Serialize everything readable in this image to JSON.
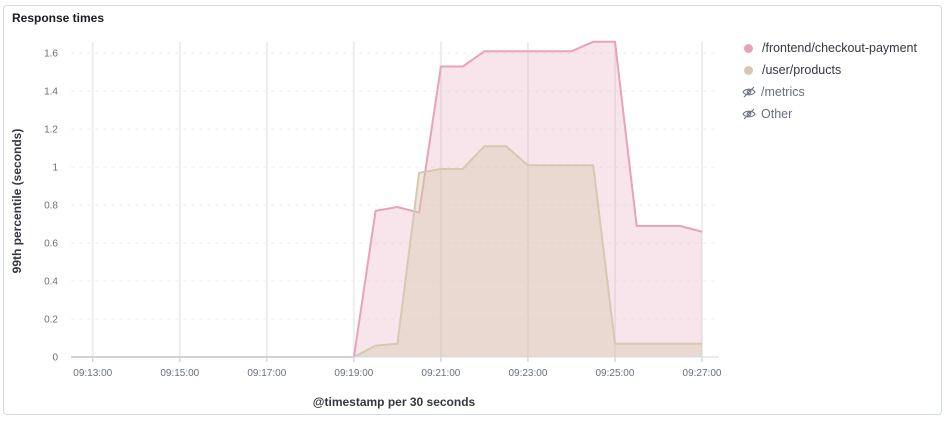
{
  "panel": {
    "title": "Response times"
  },
  "chart_data": {
    "type": "area",
    "xlabel": "@timestamp per 30 seconds",
    "ylabel": "99th percentile (seconds)",
    "ylim": [
      0,
      1.68
    ],
    "yticks": [
      0,
      0.2,
      0.4,
      0.6,
      0.8,
      1,
      1.2,
      1.4,
      1.6
    ],
    "ytick_labels": [
      "0",
      "0.2",
      "0.4",
      "0.6",
      "0.8",
      "1",
      "1.2",
      "1.4",
      "1.6"
    ],
    "x_range": [
      "09:12:30",
      "09:27:00"
    ],
    "xticks": [
      "09:13:00",
      "09:15:00",
      "09:17:00",
      "09:19:00",
      "09:21:00",
      "09:23:00",
      "09:25:00",
      "09:27:00"
    ],
    "grid": true,
    "legend_position": "right",
    "series": [
      {
        "name": "/frontend/checkout-payment",
        "color": "#e7a3b8",
        "points": [
          [
            "09:12:30",
            0
          ],
          [
            "09:19:00",
            0
          ],
          [
            "09:19:30",
            0.77
          ],
          [
            "09:20:00",
            0.79
          ],
          [
            "09:20:30",
            0.76
          ],
          [
            "09:21:00",
            1.53
          ],
          [
            "09:21:30",
            1.53
          ],
          [
            "09:22:00",
            1.61
          ],
          [
            "09:22:30",
            1.61
          ],
          [
            "09:23:00",
            1.61
          ],
          [
            "09:23:30",
            1.61
          ],
          [
            "09:24:00",
            1.61
          ],
          [
            "09:24:30",
            1.66
          ],
          [
            "09:25:00",
            1.66
          ],
          [
            "09:25:30",
            0.69
          ],
          [
            "09:26:00",
            0.69
          ],
          [
            "09:26:30",
            0.69
          ],
          [
            "09:27:00",
            0.66
          ]
        ]
      },
      {
        "name": "/user/products",
        "color": "#d6c9b2",
        "points": [
          [
            "09:12:30",
            0
          ],
          [
            "09:19:00",
            0
          ],
          [
            "09:19:30",
            0.06
          ],
          [
            "09:20:00",
            0.07
          ],
          [
            "09:20:30",
            0.97
          ],
          [
            "09:21:00",
            0.99
          ],
          [
            "09:21:30",
            0.99
          ],
          [
            "09:22:00",
            1.11
          ],
          [
            "09:22:30",
            1.11
          ],
          [
            "09:23:00",
            1.01
          ],
          [
            "09:23:30",
            1.01
          ],
          [
            "09:24:00",
            1.01
          ],
          [
            "09:24:30",
            1.01
          ],
          [
            "09:25:00",
            0.07
          ],
          [
            "09:25:30",
            0.07
          ],
          [
            "09:26:00",
            0.07
          ],
          [
            "09:26:30",
            0.07
          ],
          [
            "09:27:00",
            0.07
          ]
        ]
      }
    ],
    "legend": [
      {
        "name": "/frontend/checkout-payment",
        "color": "#e7a3b8",
        "visible": true
      },
      {
        "name": "/user/products",
        "color": "#d6c9b2",
        "visible": true
      },
      {
        "name": "/metrics",
        "visible": false,
        "icon": "eye-closed-icon"
      },
      {
        "name": "Other",
        "visible": false,
        "icon": "eye-closed-icon"
      }
    ]
  }
}
